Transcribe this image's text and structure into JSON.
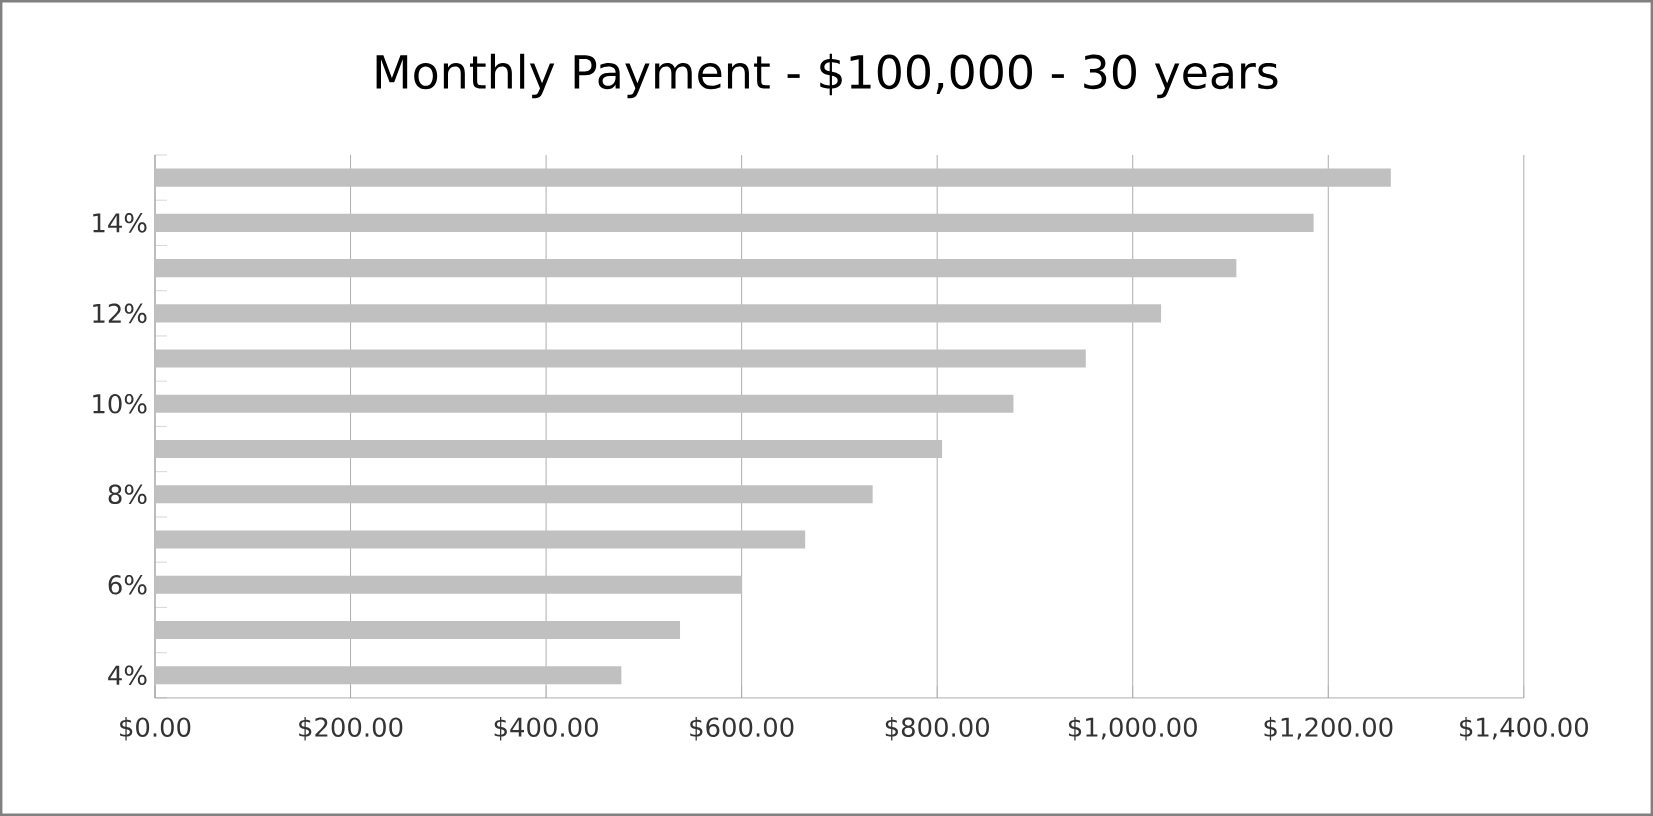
{
  "chart_data": {
    "type": "bar",
    "orientation": "horizontal",
    "title": "Monthly Payment - $100,000 - 30 years",
    "categories": [
      null,
      "14%",
      null,
      "12%",
      null,
      "10%",
      null,
      "8%",
      null,
      "6%",
      null,
      "4%"
    ],
    "values": [
      1264,
      1185,
      1106,
      1029,
      952,
      878,
      805,
      734,
      665,
      600,
      537,
      477
    ],
    "color": "#c0c0c0",
    "xlim": [
      0,
      1400
    ],
    "xticks": [
      {
        "value": 0,
        "label": "$0.00"
      },
      {
        "value": 200,
        "label": "$200.00"
      },
      {
        "value": 400,
        "label": "$400.00"
      },
      {
        "value": 600,
        "label": "$600.00"
      },
      {
        "value": 800,
        "label": "$800.00"
      },
      {
        "value": 1000,
        "label": "$1,000.00"
      },
      {
        "value": 1200,
        "label": "$1,200.00"
      },
      {
        "value": 1400,
        "label": "$1,400.00"
      }
    ],
    "grid": "x"
  }
}
